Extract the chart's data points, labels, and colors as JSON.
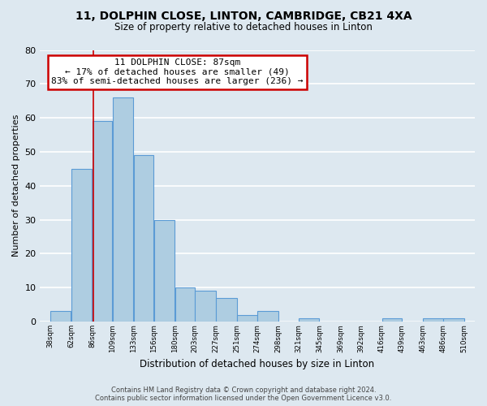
{
  "title": "11, DOLPHIN CLOSE, LINTON, CAMBRIDGE, CB21 4XA",
  "subtitle": "Size of property relative to detached houses in Linton",
  "xlabel": "Distribution of detached houses by size in Linton",
  "ylabel": "Number of detached properties",
  "bar_left_edges": [
    38,
    62,
    86,
    109,
    133,
    156,
    180,
    203,
    227,
    251,
    274,
    298,
    321,
    345,
    369,
    392,
    416,
    439,
    463,
    486
  ],
  "bar_widths": [
    24,
    24,
    23,
    24,
    23,
    24,
    23,
    24,
    24,
    23,
    24,
    23,
    24,
    24,
    23,
    24,
    23,
    24,
    23,
    24
  ],
  "bar_heights": [
    3,
    45,
    59,
    66,
    49,
    30,
    10,
    9,
    7,
    2,
    3,
    0,
    1,
    0,
    0,
    0,
    1,
    0,
    1,
    1
  ],
  "bar_color": "#aecde1",
  "bar_edge_color": "#5b9bd5",
  "property_line_x": 87,
  "annotation_lines": [
    "11 DOLPHIN CLOSE: 87sqm",
    "← 17% of detached houses are smaller (49)",
    "83% of semi-detached houses are larger (236) →"
  ],
  "annotation_box_color": "#ffffff",
  "annotation_box_edge_color": "#cc0000",
  "vline_color": "#cc0000",
  "ylim": [
    0,
    80
  ],
  "xlim": [
    26,
    522
  ],
  "xtick_labels": [
    "38sqm",
    "62sqm",
    "86sqm",
    "109sqm",
    "133sqm",
    "156sqm",
    "180sqm",
    "203sqm",
    "227sqm",
    "251sqm",
    "274sqm",
    "298sqm",
    "321sqm",
    "345sqm",
    "369sqm",
    "392sqm",
    "416sqm",
    "439sqm",
    "463sqm",
    "486sqm",
    "510sqm"
  ],
  "xtick_positions": [
    38,
    62,
    86,
    109,
    133,
    156,
    180,
    203,
    227,
    251,
    274,
    298,
    321,
    345,
    369,
    392,
    416,
    439,
    463,
    486,
    510
  ],
  "ytick_positions": [
    0,
    10,
    20,
    30,
    40,
    50,
    60,
    70,
    80
  ],
  "background_color": "#dde8f0",
  "grid_color": "#ffffff",
  "footer_line1": "Contains HM Land Registry data © Crown copyright and database right 2024.",
  "footer_line2": "Contains public sector information licensed under the Open Government Licence v3.0."
}
